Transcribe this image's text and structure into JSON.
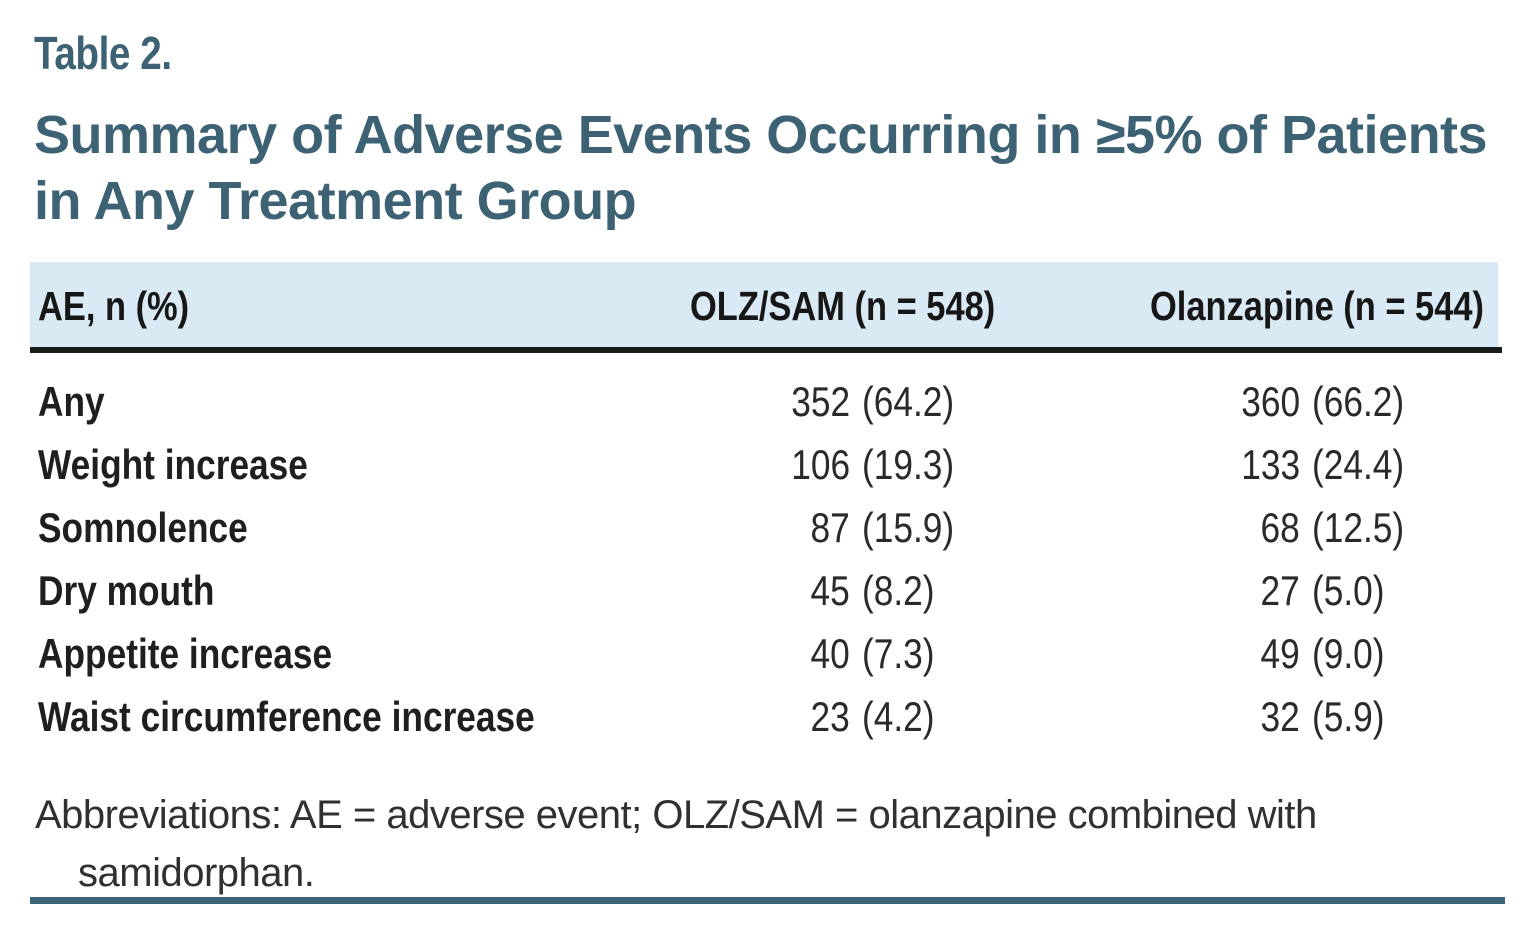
{
  "table_label": "Table 2.",
  "title": "Summary of Adverse Events Occurring in ≥5% of Patients in Any Treatment Group",
  "columns": {
    "ae": "AE, n (%)",
    "olz_sam": "OLZ/SAM (n = 548)",
    "olanzapine": "Olanzapine (n = 544)"
  },
  "rows": [
    {
      "ae": "Any",
      "olz_sam_count": "352",
      "olz_sam_pct": "(64.2)",
      "olanzapine_count": "360",
      "olanzapine_pct": "(66.2)"
    },
    {
      "ae": "Weight increase",
      "olz_sam_count": "106",
      "olz_sam_pct": "(19.3)",
      "olanzapine_count": "133",
      "olanzapine_pct": "(24.4)"
    },
    {
      "ae": "Somnolence",
      "olz_sam_count": "87",
      "olz_sam_pct": "(15.9)",
      "olanzapine_count": "68",
      "olanzapine_pct": "(12.5)"
    },
    {
      "ae": "Dry mouth",
      "olz_sam_count": "45",
      "olz_sam_pct": "(8.2)",
      "olanzapine_count": "27",
      "olanzapine_pct": "(5.0)"
    },
    {
      "ae": "Appetite increase",
      "olz_sam_count": "40",
      "olz_sam_pct": "(7.3)",
      "olanzapine_count": "49",
      "olanzapine_pct": "(9.0)"
    },
    {
      "ae": "Waist circumference increase",
      "olz_sam_count": "23",
      "olz_sam_pct": "(4.2)",
      "olanzapine_count": "32",
      "olanzapine_pct": "(5.9)"
    }
  ],
  "footnote": "Abbreviations: AE = adverse event; OLZ/SAM = olanzapine combined with samidorphan.",
  "colors": {
    "accent_teal": "#3c6274",
    "header_band": "#daeaf4",
    "header_rule": "#1c1c1c",
    "bottom_rule": "#3e6577",
    "body_text": "#1f1f1f"
  }
}
